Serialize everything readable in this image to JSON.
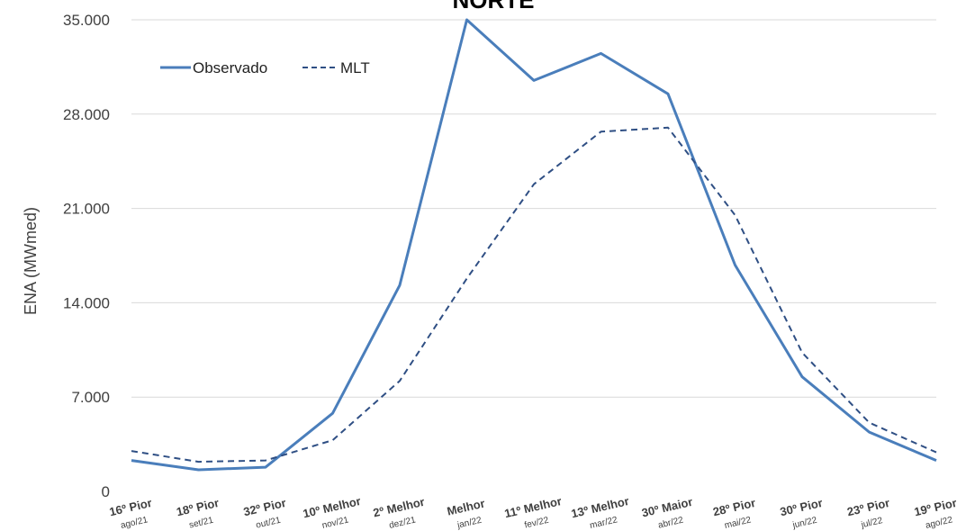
{
  "chart_data": {
    "type": "line",
    "title": "NORTE",
    "xlabel": "",
    "ylabel": "ENA (MWmed)",
    "ylim": [
      0,
      35000
    ],
    "yticks": [
      "0",
      "7.000",
      "14.000",
      "21.000",
      "28.000",
      "35.000"
    ],
    "grid": true,
    "legend_position": "top-left",
    "categories": [
      {
        "rank": "16º Pior",
        "date": "ago/21"
      },
      {
        "rank": "18º Pior",
        "date": "set/21"
      },
      {
        "rank": "32º Pior",
        "date": "out/21"
      },
      {
        "rank": "10º Melhor",
        "date": "nov/21"
      },
      {
        "rank": "2º Melhor",
        "date": "dez/21"
      },
      {
        "rank": "Melhor",
        "date": "jan/22"
      },
      {
        "rank": "11º Melhor",
        "date": "fev/22"
      },
      {
        "rank": "13º Melhor",
        "date": "mar/22"
      },
      {
        "rank": "30º Maior",
        "date": "abr/22"
      },
      {
        "rank": "28º Pior",
        "date": "mai/22"
      },
      {
        "rank": "30º Pior",
        "date": "jun/22"
      },
      {
        "rank": "23º Pior",
        "date": "jul/22"
      },
      {
        "rank": "19º Pior",
        "date": "ago/22"
      }
    ],
    "series": [
      {
        "name": "Observado",
        "color": "#4a7ebb",
        "dash": "solid",
        "values": [
          2300,
          1600,
          1800,
          5800,
          15300,
          35000,
          30500,
          32500,
          29500,
          16800,
          8500,
          4400,
          2300
        ]
      },
      {
        "name": "MLT",
        "color": "#2f4f84",
        "dash": "dashed",
        "values": [
          3000,
          2200,
          2300,
          3800,
          8200,
          15800,
          22800,
          26700,
          27000,
          20500,
          10300,
          5100,
          2900
        ]
      }
    ]
  }
}
